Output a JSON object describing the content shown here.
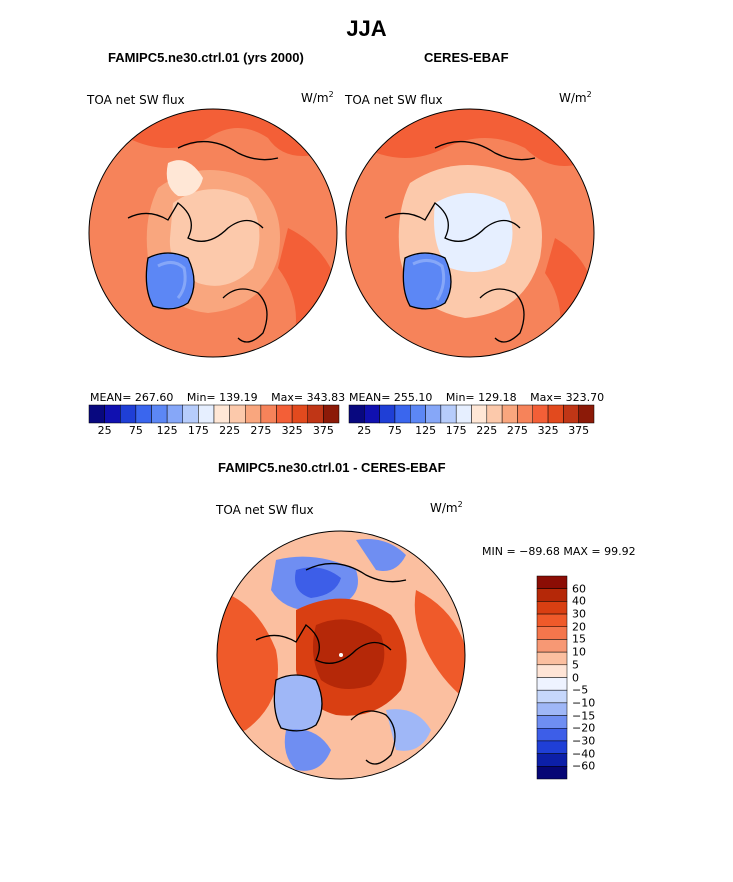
{
  "page": {
    "title": "JJA",
    "colors": {
      "seq": [
        "#08087f",
        "#1010b0",
        "#1f3fd6",
        "#3a66ee",
        "#5c87f5",
        "#86a7f8",
        "#b6ccfb",
        "#e6efff",
        "#ffe7d6",
        "#fcc9ab",
        "#f9a67e",
        "#f6835a",
        "#f35f37",
        "#e24a1e",
        "#c03616",
        "#8c1a08"
      ],
      "div": [
        "#8b0d05",
        "#b52808",
        "#d93f12",
        "#ef5a2a",
        "#f4764c",
        "#f79874",
        "#fbbfa0",
        "#fee4d6",
        "#eef3ff",
        "#c6d7fb",
        "#9fb7f7",
        "#6f8ef2",
        "#3d5ee8",
        "#1f3fd6",
        "#0c1fa8",
        "#060675"
      ]
    }
  },
  "panels": [
    {
      "case": "FAMIPC5.ne30.ctrl.01 (yrs 2000)",
      "variable": "TOA net SW flux",
      "units": "W/m",
      "units_sup": "2",
      "stats": {
        "mean": "MEAN= 267.60",
        "min": "Min= 139.19",
        "max": "Max= 343.83"
      },
      "colorbar_ticks": [
        "25",
        "75",
        "125",
        "175",
        "225",
        "275",
        "325",
        "375"
      ]
    },
    {
      "case": "CERES-EBAF",
      "variable": "TOA net SW flux",
      "units": "W/m",
      "units_sup": "2",
      "stats": {
        "mean": "MEAN= 255.10",
        "min": "Min= 129.18",
        "max": "Max= 323.70"
      },
      "colorbar_ticks": [
        "25",
        "75",
        "125",
        "175",
        "225",
        "275",
        "325",
        "375"
      ]
    }
  ],
  "diff": {
    "title": "FAMIPC5.ne30.ctrl.01 - CERES-EBAF",
    "variable": "TOA net SW flux",
    "units": "W/m",
    "units_sup": "2",
    "minmax": "MIN = −89.68 MAX =  99.92",
    "colorbar_labels": [
      "60",
      "40",
      "30",
      "20",
      "15",
      "10",
      "5",
      "0",
      "−5",
      "−10",
      "−15",
      "−20",
      "−30",
      "−40",
      "−60"
    ]
  }
}
